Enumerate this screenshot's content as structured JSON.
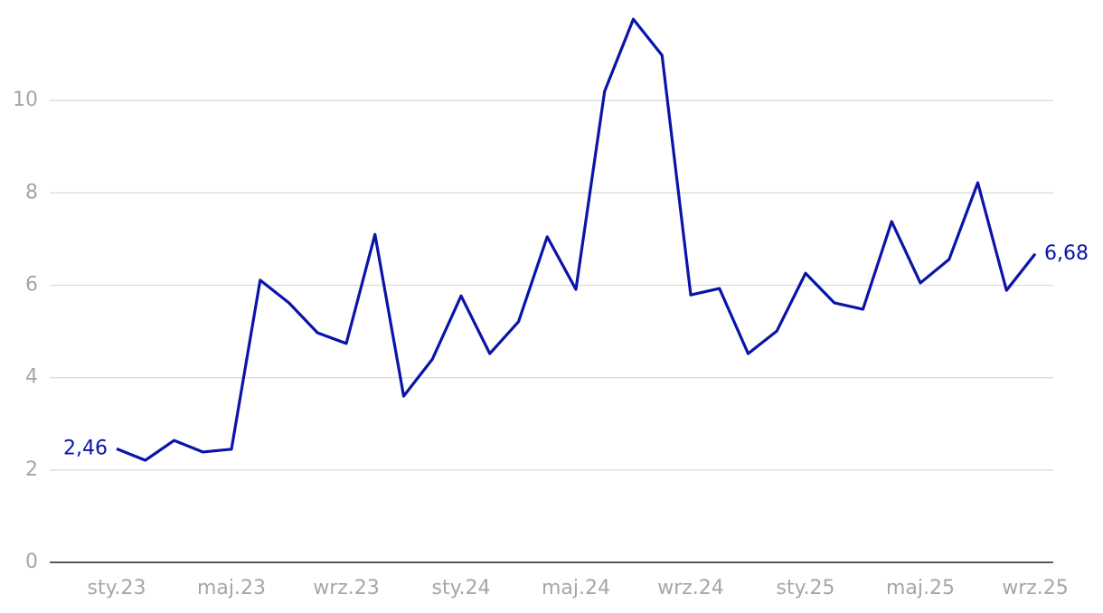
{
  "chart_data": {
    "type": "line",
    "categories": [
      "sty.23",
      null,
      null,
      null,
      "maj.23",
      null,
      null,
      null,
      "wrz.23",
      null,
      null,
      null,
      "sty.24",
      null,
      null,
      null,
      "maj.24",
      null,
      null,
      null,
      "wrz.24",
      null,
      null,
      null,
      "sty.25",
      null,
      null,
      null,
      "maj.25",
      null,
      null,
      null,
      "wrz.25"
    ],
    "values": [
      2.46,
      2.21,
      2.64,
      2.39,
      2.45,
      6.11,
      5.62,
      4.97,
      4.74,
      7.1,
      3.6,
      4.4,
      5.77,
      4.52,
      5.21,
      7.05,
      5.91,
      10.2,
      11.76,
      10.98,
      5.79,
      5.93,
      4.52,
      5.01,
      6.26,
      5.62,
      5.48,
      7.38,
      6.05,
      6.56,
      8.22,
      5.89,
      6.68
    ],
    "value_labels": [
      "2,46",
      null,
      null,
      null,
      null,
      null,
      null,
      null,
      null,
      null,
      null,
      null,
      null,
      null,
      null,
      null,
      null,
      null,
      null,
      null,
      null,
      null,
      null,
      null,
      null,
      null,
      null,
      null,
      null,
      null,
      null,
      null,
      "6,68"
    ],
    "color": "#0a14a8",
    "ylim": [
      0,
      12
    ],
    "yticks": [
      0,
      2,
      4,
      6,
      8,
      10
    ],
    "grid": true
  }
}
